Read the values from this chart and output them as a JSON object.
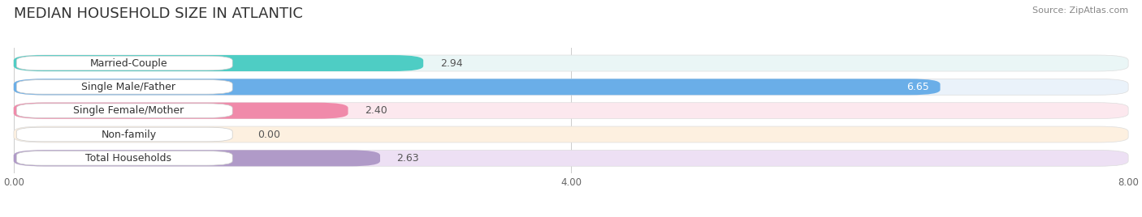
{
  "title": "MEDIAN HOUSEHOLD SIZE IN ATLANTIC",
  "source": "Source: ZipAtlas.com",
  "categories": [
    "Married-Couple",
    "Single Male/Father",
    "Single Female/Mother",
    "Non-family",
    "Total Households"
  ],
  "values": [
    2.94,
    6.65,
    2.4,
    0.0,
    2.63
  ],
  "bar_colors": [
    "#4ecdc4",
    "#6aaee8",
    "#f08aaa",
    "#f5c98a",
    "#b09ac8"
  ],
  "bar_bg_colors": [
    "#eaf6f6",
    "#eaf2fa",
    "#fce8ee",
    "#fdf0e0",
    "#ede0f4"
  ],
  "label_box_color": "#ffffff",
  "xlim": [
    0,
    8.0
  ],
  "xticks": [
    0.0,
    4.0,
    8.0
  ],
  "xtick_labels": [
    "0.00",
    "4.00",
    "8.00"
  ],
  "background_color": "#ffffff",
  "title_fontsize": 13,
  "label_fontsize": 9,
  "value_fontsize": 9,
  "source_fontsize": 8
}
